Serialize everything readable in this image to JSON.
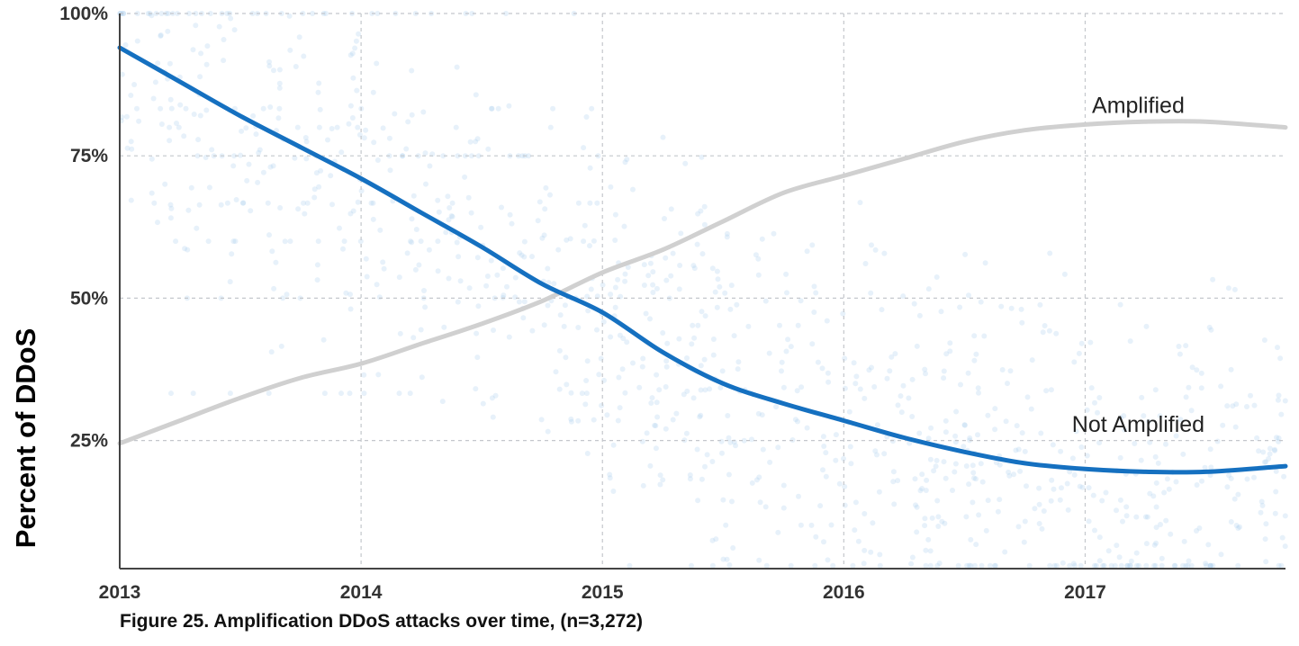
{
  "chart_data": {
    "type": "line",
    "title": "",
    "caption": "Figure 25.  Amplification DDoS attacks over time, (n=3,272)",
    "xlabel": "",
    "ylabel": "Percent of DDoS",
    "x_ticks": [
      {
        "value": 2013,
        "label": "2013"
      },
      {
        "value": 2014,
        "label": "2014"
      },
      {
        "value": 2015,
        "label": "2015"
      },
      {
        "value": 2016,
        "label": "2016"
      },
      {
        "value": 2017,
        "label": "2017"
      }
    ],
    "y_ticks": [
      {
        "value": 25,
        "label": "25%"
      },
      {
        "value": 50,
        "label": "50%"
      },
      {
        "value": 75,
        "label": "75%"
      },
      {
        "value": 100,
        "label": "100%"
      }
    ],
    "xlim": [
      2013.0,
      2017.83
    ],
    "ylim": [
      2.5,
      100
    ],
    "grid": true,
    "series": [
      {
        "name": "Amplified",
        "color": "#d0d0d0",
        "x": [
          2013.0,
          2013.25,
          2013.5,
          2013.75,
          2014.0,
          2014.25,
          2014.5,
          2014.75,
          2015.0,
          2015.25,
          2015.5,
          2015.75,
          2016.0,
          2016.25,
          2016.5,
          2016.75,
          2017.0,
          2017.25,
          2017.5,
          2017.83
        ],
        "values": [
          24.5,
          28.5,
          32.5,
          36.0,
          38.5,
          42.0,
          45.5,
          49.5,
          54.5,
          58.5,
          63.5,
          68.5,
          71.5,
          74.5,
          77.5,
          79.5,
          80.5,
          81.0,
          81.0,
          80.0
        ]
      },
      {
        "name": "Not Amplified",
        "color": "#1570c0",
        "x": [
          2013.0,
          2013.25,
          2013.5,
          2013.75,
          2014.0,
          2014.25,
          2014.5,
          2014.75,
          2015.0,
          2015.25,
          2015.5,
          2015.75,
          2016.0,
          2016.25,
          2016.5,
          2016.75,
          2017.0,
          2017.25,
          2017.5,
          2017.83
        ],
        "values": [
          94.0,
          88.0,
          82.0,
          76.5,
          71.0,
          65.0,
          59.0,
          52.5,
          47.5,
          40.5,
          35.0,
          31.5,
          28.5,
          25.5,
          23.0,
          21.0,
          20.0,
          19.5,
          19.5,
          20.5
        ]
      }
    ],
    "annotations": [
      {
        "text": "Amplified",
        "x": 2017.22,
        "y": 82.5
      },
      {
        "text": "Not Amplified",
        "x": 2017.22,
        "y": 26.5
      }
    ],
    "scatter_color": "#a9cbee"
  }
}
